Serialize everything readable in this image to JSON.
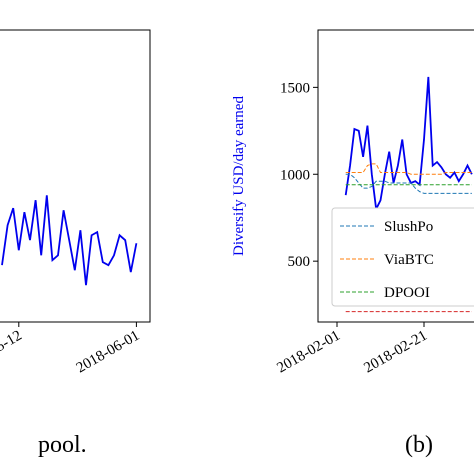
{
  "chart_data": [
    {
      "type": "line",
      "categories": [
        null,
        null,
        null,
        "5-12",
        null,
        null,
        null,
        null,
        null,
        null,
        null,
        null,
        null,
        null,
        null,
        null,
        null,
        null,
        null,
        null,
        null,
        null,
        null,
        null,
        "2018-06-01"
      ],
      "series": [
        {
          "color": "#0000ee",
          "values": [
            477,
            707,
            805,
            563,
            782,
            621,
            851,
            534,
            879,
            506,
            534,
            793,
            621,
            448,
            678,
            362,
            649,
            667,
            494,
            477,
            534,
            649,
            621,
            437,
            603
          ]
        }
      ],
      "ylim": [
        150,
        1830
      ]
    },
    {
      "type": "line",
      "y_label": "Diversify USD/day earned",
      "categories": [
        "2018-02-01",
        null,
        null,
        null,
        null,
        null,
        null,
        null,
        null,
        null,
        null,
        null,
        null,
        null,
        null,
        null,
        null,
        null,
        null,
        null,
        "2018-02-21",
        null,
        null,
        null,
        null,
        null,
        null,
        null,
        null,
        null,
        null,
        null
      ],
      "series": [
        {
          "color": "#0000ee",
          "values": [
            null,
            null,
            880,
            1050,
            1260,
            1250,
            1100,
            1280,
            1000,
            800,
            850,
            1000,
            1130,
            950,
            1050,
            1200,
            1000,
            950,
            960,
            940,
            1200,
            1560,
            1050,
            1070,
            1040,
            1000,
            980,
            1010,
            960,
            1000,
            1050,
            1000
          ]
        },
        {
          "name": "SlushPo",
          "color": "#1f77b4",
          "dashed": true,
          "values": [
            null,
            null,
            1000,
            1000,
            980,
            950,
            920,
            920,
            930,
            960,
            960,
            960,
            950,
            950,
            950,
            950,
            950,
            950,
            920,
            900,
            890,
            890,
            890,
            890,
            890,
            890,
            890,
            890,
            890,
            890,
            890,
            890
          ]
        },
        {
          "name": "ViaBTC",
          "color": "#ff7f0e",
          "dashed": true,
          "values": [
            null,
            null,
            1010,
            1010,
            1010,
            1010,
            1010,
            1050,
            1060,
            1060,
            1010,
            1010,
            1010,
            1010,
            1010,
            1010,
            1010,
            1000,
            1000,
            1000,
            1000,
            1000,
            1000,
            1000,
            1000,
            1010,
            1010,
            1010,
            1010,
            1010,
            1010,
            1010
          ]
        },
        {
          "name": "DPOOI",
          "color": "#2ca02c",
          "dashed": true,
          "values": [
            null,
            null,
            940,
            940,
            940,
            940,
            940,
            940,
            940,
            940,
            940,
            940,
            940,
            940,
            940,
            940,
            940,
            940,
            940,
            940,
            940,
            940,
            940,
            940,
            940,
            940,
            940,
            940,
            940,
            940,
            940,
            940
          ]
        },
        {
          "color": "#d62728",
          "dashed": true,
          "values": [
            null,
            null,
            210,
            210,
            210,
            210,
            210,
            210,
            210,
            210,
            210,
            210,
            210,
            210,
            210,
            210,
            210,
            210,
            210,
            210,
            210,
            210,
            210,
            210,
            210,
            210,
            210,
            210,
            210,
            210,
            210,
            210
          ]
        }
      ],
      "ylim": [
        150,
        1830
      ],
      "yticks": [
        500,
        1000,
        1500
      ],
      "legend": "lower-left"
    }
  ],
  "captions": [
    "pool.",
    "(b)"
  ]
}
